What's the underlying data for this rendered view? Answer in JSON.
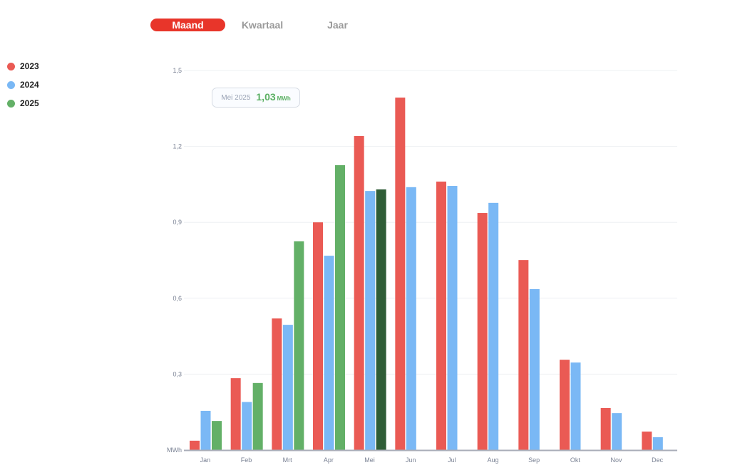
{
  "tabs": [
    {
      "label": "Maand",
      "active": true
    },
    {
      "label": "Kwartaal",
      "active": false
    },
    {
      "label": "Jaar",
      "active": false
    }
  ],
  "tooltip": {
    "label": "Mei 2025",
    "value": "1,03",
    "unit": "MWh"
  },
  "colors": {
    "2023": "#ea5a54",
    "2024": "#7ab8f5",
    "2025": "#63b067",
    "highlight": "#2f5d37",
    "accent": "#e8352a"
  },
  "chart_data": {
    "type": "bar",
    "unit_label": "MWh",
    "categories": [
      "Jan",
      "Feb",
      "Mrt",
      "Apr",
      "Mei",
      "Jun",
      "Jul",
      "Aug",
      "Sep",
      "Okt",
      "Nov",
      "Dec"
    ],
    "series": [
      {
        "name": "2023",
        "values": [
          0.037,
          0.284,
          0.52,
          0.9,
          1.241,
          1.393,
          1.061,
          0.937,
          0.751,
          0.357,
          0.166,
          0.073
        ]
      },
      {
        "name": "2024",
        "values": [
          0.155,
          0.19,
          0.495,
          0.768,
          1.024,
          1.039,
          1.044,
          0.977,
          0.636,
          0.346,
          0.146,
          0.051
        ]
      },
      {
        "name": "2025",
        "values": [
          0.115,
          0.265,
          0.825,
          1.126,
          1.03,
          null,
          null,
          null,
          null,
          null,
          null,
          null
        ]
      }
    ],
    "highlighted": {
      "series": "2025",
      "category": "Mei"
    },
    "ylim": [
      0,
      1.5
    ],
    "yticks": [
      {
        "v": 0,
        "label": ""
      },
      {
        "v": 0.3,
        "label": "0,3"
      },
      {
        "v": 0.6,
        "label": "0,6"
      },
      {
        "v": 0.9,
        "label": "0,9"
      },
      {
        "v": 1.2,
        "label": "1,2"
      },
      {
        "v": 1.5,
        "label": "1,5"
      }
    ],
    "grid": true,
    "legend": "left"
  }
}
